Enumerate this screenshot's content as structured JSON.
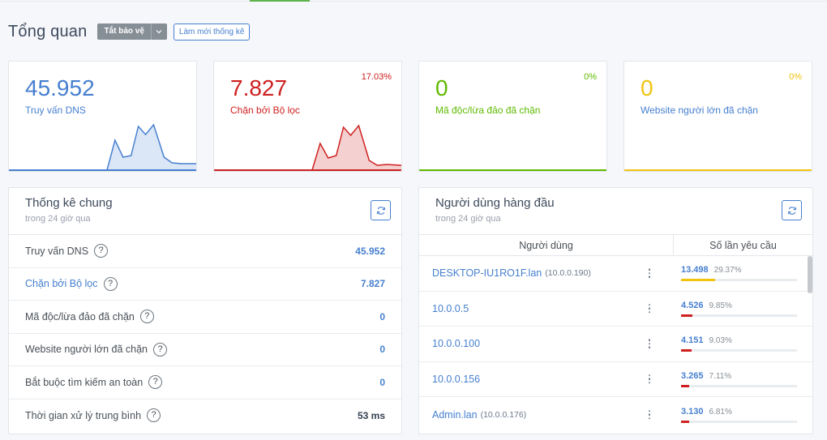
{
  "header": {
    "title": "Tổng quan",
    "protect_button": "Tắt bảo vệ",
    "refresh_stats_button": "Làm mới thống kê"
  },
  "stat_cards": [
    {
      "value": "45.952",
      "label": "Truy vấn DNS",
      "percent": "",
      "color": "#467fcf",
      "fill": "#dbe6f7"
    },
    {
      "value": "7.827",
      "label": "Chặn bởi Bộ lọc",
      "percent": "17.03%",
      "color": "#cd201f",
      "fill": "#f5d0d0"
    },
    {
      "value": "0",
      "label": "Mã độc/lừa đảo đã chặn",
      "percent": "0%",
      "color": "#5eba00",
      "fill": "#ffffff"
    },
    {
      "value": "0",
      "label": "Website người lớn đã chặn",
      "percent": "0%",
      "color": "#f1c40f",
      "fill": "#ffffff"
    }
  ],
  "general_stats": {
    "title": "Thống kê chung",
    "subtitle": "trong 24 giờ qua",
    "rows": [
      {
        "label": "Truy vấn DNS",
        "value": "45.952"
      },
      {
        "label": "Chặn bởi Bộ lọc",
        "value": "7.827"
      },
      {
        "label": "Mã độc/lừa đảo đã chặn",
        "value": "0"
      },
      {
        "label": "Website người lớn đã chặn",
        "value": "0"
      },
      {
        "label": "Bắt buộc tìm kiếm an toàn",
        "value": "0"
      },
      {
        "label": "Thời gian xử lý trung bình",
        "value": "53 ms"
      }
    ]
  },
  "top_clients": {
    "title": "Người dùng hàng đầu",
    "subtitle": "trong 24 giờ qua",
    "col_user": "Người dùng",
    "col_count": "Số lần yêu cầu",
    "rows": [
      {
        "name": "DESKTOP-IU1RO1F.lan",
        "ip": "(10.0.0.190)",
        "count": "13.498",
        "percent": "29.37%",
        "fraction": 0.2937,
        "bar_color": "#f1c40f"
      },
      {
        "name": "10.0.0.5",
        "ip": "",
        "count": "4.526",
        "percent": "9.85%",
        "fraction": 0.0985,
        "bar_color": "#cd201f"
      },
      {
        "name": "10.0.0.100",
        "ip": "",
        "count": "4.151",
        "percent": "9.03%",
        "fraction": 0.0903,
        "bar_color": "#cd201f"
      },
      {
        "name": "10.0.0.156",
        "ip": "",
        "count": "3.265",
        "percent": "7.11%",
        "fraction": 0.0711,
        "bar_color": "#cd201f"
      },
      {
        "name": "Admin.lan",
        "ip": "(10.0.0.176)",
        "count": "3.130",
        "percent": "6.81%",
        "fraction": 0.0681,
        "bar_color": "#cd201f"
      }
    ]
  }
}
